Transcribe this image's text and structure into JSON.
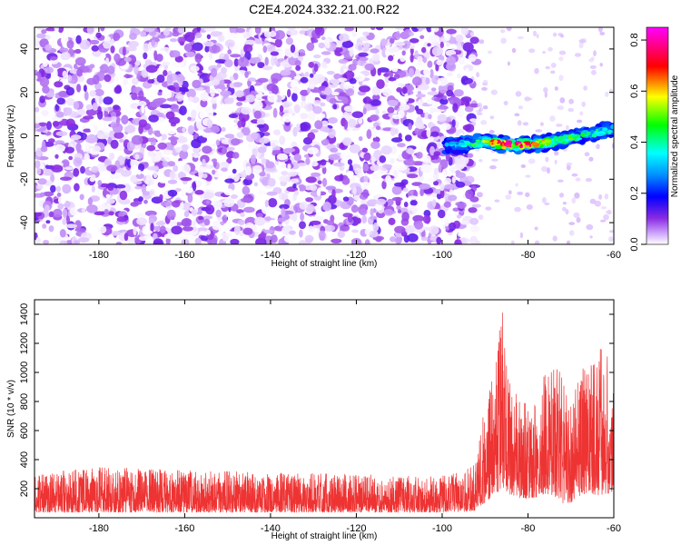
{
  "figure": {
    "title": "C2E4.2024.332.21.00.R22"
  },
  "chart_data": [
    {
      "type": "heatmap",
      "title": "C2E4.2024.332.21.00.R22",
      "xlabel": "Height of straight line (km)",
      "ylabel": "Frequency (Hz)",
      "xlim": [
        -195,
        -60
      ],
      "ylim": [
        -50,
        50
      ],
      "x_ticks": [
        -180,
        -160,
        -140,
        -120,
        -100,
        -80,
        -60
      ],
      "y_ticks": [
        -40,
        -20,
        0,
        20,
        40
      ],
      "colorbar": {
        "label": "Normalized spectral amplitude",
        "range": [
          0,
          0.85
        ],
        "ticks": [
          0.0,
          0.2,
          0.4,
          0.6,
          0.8
        ],
        "colormap": [
          "#ffffff",
          "#8a2be2",
          "#0000ff",
          "#00ffff",
          "#00ff00",
          "#ffff00",
          "#ff0000",
          "#ff00ff"
        ]
      },
      "noise_region": {
        "x": [
          -195,
          -92
        ],
        "y": [
          -50,
          50
        ],
        "amplitude": [
          0.0,
          0.15
        ]
      },
      "signal_band": [
        {
          "x": -99,
          "freq": -5,
          "amplitude": 0.35
        },
        {
          "x": -95,
          "freq": -4,
          "amplitude": 0.45
        },
        {
          "x": -90,
          "freq": -3,
          "amplitude": 0.6
        },
        {
          "x": -85,
          "freq": -4,
          "amplitude": 0.85
        },
        {
          "x": -80,
          "freq": -4,
          "amplitude": 0.75
        },
        {
          "x": -75,
          "freq": -3,
          "amplitude": 0.6
        },
        {
          "x": -70,
          "freq": -1,
          "amplitude": 0.5
        },
        {
          "x": -65,
          "freq": 1,
          "amplitude": 0.45
        },
        {
          "x": -60,
          "freq": 3,
          "amplitude": 0.4
        }
      ],
      "grid": false
    },
    {
      "type": "line",
      "xlabel": "Height of straight line (km)",
      "ylabel": "SNR (10 * v/v)",
      "xlim": [
        -195,
        -60
      ],
      "ylim": [
        0,
        1500
      ],
      "x_ticks": [
        -180,
        -160,
        -140,
        -120,
        -100,
        -80,
        -60
      ],
      "y_ticks": [
        200,
        400,
        600,
        800,
        1000,
        1200,
        1400
      ],
      "color": "#ee3333",
      "series": [
        {
          "x": [
            -195,
            -180,
            -160,
            -140,
            -120,
            -100,
            -95,
            -92,
            -90,
            -88,
            -87,
            -86,
            -85,
            -84,
            -82,
            -80,
            -78,
            -76,
            -74,
            -72,
            -70,
            -68,
            -66,
            -64,
            -62,
            -60
          ],
          "y_base": [
            150,
            150,
            150,
            150,
            150,
            150,
            160,
            200,
            420,
            600,
            700,
            900,
            650,
            580,
            550,
            520,
            560,
            650,
            600,
            400,
            420,
            600,
            700,
            620,
            650,
            700
          ],
          "y_peak": [
            300,
            350,
            330,
            310,
            300,
            290,
            320,
            400,
            800,
            1000,
            1300,
            1500,
            1050,
            900,
            820,
            830,
            800,
            1000,
            1150,
            950,
            780,
            1100,
            1000,
            1200,
            1150,
            1000
          ]
        }
      ],
      "grid": false
    }
  ]
}
